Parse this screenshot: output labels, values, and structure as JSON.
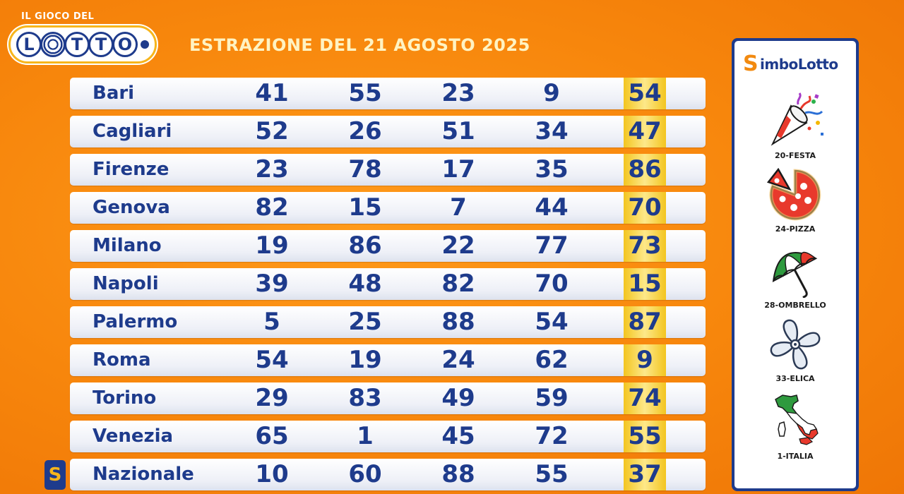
{
  "logo": {
    "tagline": "IL GIOCO DEL",
    "letters": [
      "L",
      "O",
      "T",
      "T",
      "O"
    ]
  },
  "header": {
    "title": "ESTRAZIONE DEL 21 AGOSTO 2025"
  },
  "draws": [
    {
      "city": "Bari",
      "numbers": [
        "41",
        "55",
        "23",
        "9",
        "54"
      ]
    },
    {
      "city": "Cagliari",
      "numbers": [
        "52",
        "26",
        "51",
        "34",
        "47"
      ]
    },
    {
      "city": "Firenze",
      "numbers": [
        "23",
        "78",
        "17",
        "35",
        "86"
      ]
    },
    {
      "city": "Genova",
      "numbers": [
        "82",
        "15",
        "7",
        "44",
        "70"
      ]
    },
    {
      "city": "Milano",
      "numbers": [
        "19",
        "86",
        "22",
        "77",
        "73"
      ]
    },
    {
      "city": "Napoli",
      "numbers": [
        "39",
        "48",
        "82",
        "70",
        "15"
      ]
    },
    {
      "city": "Palermo",
      "numbers": [
        "5",
        "25",
        "88",
        "54",
        "87"
      ]
    },
    {
      "city": "Roma",
      "numbers": [
        "54",
        "19",
        "24",
        "62",
        "9"
      ]
    },
    {
      "city": "Torino",
      "numbers": [
        "29",
        "83",
        "49",
        "59",
        "74"
      ]
    },
    {
      "city": "Venezia",
      "numbers": [
        "65",
        "1",
        "45",
        "72",
        "55"
      ]
    },
    {
      "city": "Nazionale",
      "numbers": [
        "10",
        "60",
        "88",
        "55",
        "37"
      ],
      "badge": "S"
    }
  ],
  "simbolotto": {
    "title_initial": "S",
    "title_rest": "imboLotto",
    "symbols": [
      {
        "label": "20-FESTA",
        "icon": "party-popper-icon"
      },
      {
        "label": "24-PIZZA",
        "icon": "pizza-icon"
      },
      {
        "label": "28-OMBRELLO",
        "icon": "umbrella-icon"
      },
      {
        "label": "33-ELICA",
        "icon": "propeller-icon"
      },
      {
        "label": "1-ITALIA",
        "icon": "italy-map-icon"
      }
    ]
  },
  "colors": {
    "background": "#f7860c",
    "brand_blue": "#1e3b8c",
    "highlight_gold": "#f3c520",
    "title_cream": "#fff3c2"
  }
}
